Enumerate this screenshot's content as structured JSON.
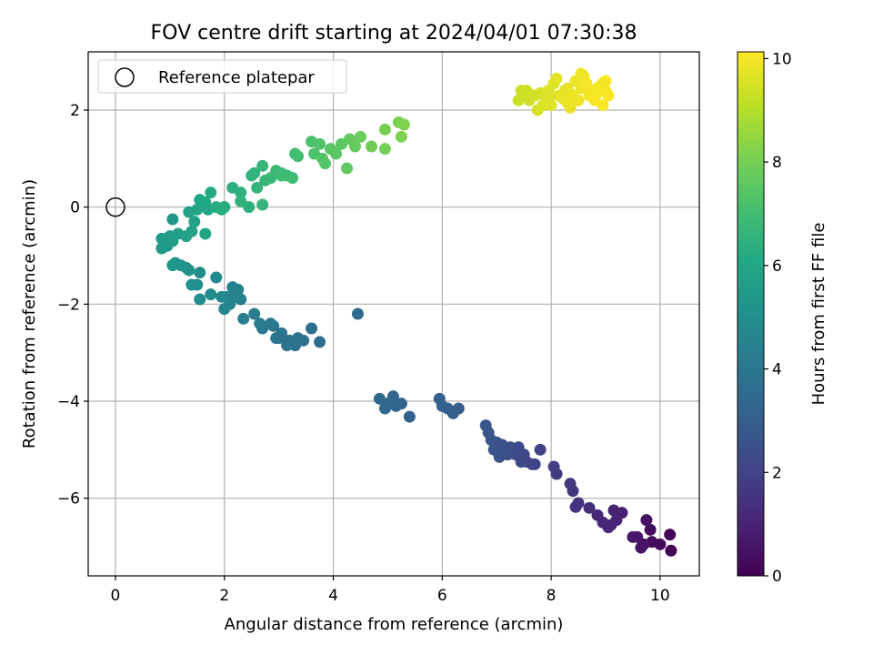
{
  "chart_data": {
    "type": "scatter",
    "title": "FOV centre drift starting at 2024/04/01 07:30:38",
    "xlabel": "Angular distance from reference (arcmin)",
    "ylabel": "Rotation from reference (arcmin)",
    "xlim": [
      -0.5,
      10.72
    ],
    "ylim": [
      -7.6,
      3.2
    ],
    "xticks": [
      0,
      2,
      4,
      6,
      8,
      10
    ],
    "yticks": [
      -6,
      -4,
      -2,
      0,
      2
    ],
    "grid": true,
    "legend": {
      "position": "top-left",
      "entries": [
        "Reference platepar"
      ]
    },
    "reference_point": {
      "x": 0,
      "y": 0
    },
    "colorbar": {
      "label": "Hours from first FF file",
      "colormap": "viridis",
      "range": [
        0,
        10.13
      ],
      "ticks": [
        0,
        2,
        4,
        6,
        8,
        10
      ]
    },
    "series": [
      {
        "points": [
          [
            10.2,
            -7.08
          ],
          [
            10.18,
            -6.75
          ],
          [
            10.0,
            -6.95
          ],
          [
            9.85,
            -6.9
          ],
          [
            9.82,
            -6.65
          ],
          [
            9.75,
            -6.45
          ],
          [
            9.7,
            -6.95
          ],
          [
            9.65,
            -7.02
          ],
          [
            9.58,
            -6.8
          ],
          [
            9.5,
            -6.8
          ],
          [
            9.3,
            -6.3
          ],
          [
            9.2,
            -6.45
          ],
          [
            9.15,
            -6.25
          ],
          [
            9.1,
            -6.55
          ],
          [
            9.05,
            -6.6
          ],
          [
            8.95,
            -6.5
          ],
          [
            8.85,
            -6.35
          ],
          [
            8.7,
            -6.2
          ],
          [
            8.5,
            -6.1
          ],
          [
            8.45,
            -6.18
          ],
          [
            8.4,
            -5.85
          ],
          [
            8.35,
            -5.7
          ],
          [
            8.1,
            -5.5
          ],
          [
            8.05,
            -5.35
          ],
          [
            7.8,
            -5.0
          ],
          [
            7.7,
            -5.3
          ],
          [
            7.65,
            -5.3
          ],
          [
            7.55,
            -5.25
          ],
          [
            7.5,
            -5.1
          ],
          [
            7.45,
            -5.25
          ],
          [
            7.4,
            -4.95
          ],
          [
            7.35,
            -5.1
          ],
          [
            7.3,
            -5.0
          ],
          [
            7.25,
            -4.95
          ],
          [
            7.2,
            -5.1
          ],
          [
            7.15,
            -5.0
          ],
          [
            7.1,
            -4.9
          ],
          [
            7.05,
            -5.15
          ],
          [
            7.0,
            -4.85
          ],
          [
            6.95,
            -5.0
          ],
          [
            6.9,
            -4.8
          ],
          [
            6.85,
            -4.65
          ],
          [
            6.8,
            -4.5
          ],
          [
            6.3,
            -4.15
          ],
          [
            6.2,
            -4.25
          ],
          [
            6.1,
            -4.15
          ],
          [
            6.0,
            -4.1
          ],
          [
            5.95,
            -3.95
          ],
          [
            5.4,
            -4.32
          ],
          [
            5.25,
            -4.05
          ],
          [
            5.15,
            -4.1
          ],
          [
            5.1,
            -3.9
          ],
          [
            5.05,
            -4.02
          ],
          [
            5.0,
            -4.05
          ],
          [
            4.95,
            -4.15
          ],
          [
            4.85,
            -3.95
          ],
          [
            4.45,
            -2.2
          ],
          [
            3.75,
            -2.78
          ],
          [
            3.6,
            -2.5
          ],
          [
            3.45,
            -2.75
          ],
          [
            3.35,
            -2.7
          ],
          [
            3.3,
            -2.85
          ],
          [
            3.2,
            -2.75
          ],
          [
            3.15,
            -2.85
          ],
          [
            3.05,
            -2.6
          ],
          [
            2.95,
            -2.7
          ],
          [
            2.9,
            -2.45
          ],
          [
            2.85,
            -2.4
          ],
          [
            2.7,
            -2.5
          ],
          [
            2.65,
            -2.4
          ],
          [
            2.55,
            -2.2
          ],
          [
            2.35,
            -2.3
          ],
          [
            2.3,
            -1.9
          ],
          [
            2.25,
            -1.7
          ],
          [
            2.2,
            -1.85
          ],
          [
            2.15,
            -1.65
          ],
          [
            2.1,
            -2.0
          ],
          [
            2.05,
            -1.85
          ],
          [
            2.0,
            -2.1
          ],
          [
            1.95,
            -1.85
          ],
          [
            1.85,
            -1.45
          ],
          [
            1.75,
            -1.8
          ],
          [
            1.55,
            -1.9
          ],
          [
            1.55,
            -1.35
          ],
          [
            1.5,
            -1.6
          ],
          [
            1.4,
            -1.6
          ],
          [
            1.35,
            -1.3
          ],
          [
            1.3,
            -1.25
          ],
          [
            1.2,
            -1.2
          ],
          [
            1.1,
            -1.15
          ],
          [
            1.05,
            -1.2
          ],
          [
            0.95,
            -0.8
          ],
          [
            0.9,
            -0.75
          ],
          [
            0.85,
            -0.85
          ],
          [
            1.0,
            -0.6
          ],
          [
            0.85,
            -0.65
          ],
          [
            1.05,
            -0.7
          ],
          [
            1.15,
            -0.55
          ],
          [
            1.3,
            -0.6
          ],
          [
            1.4,
            -0.5
          ],
          [
            1.45,
            -0.3
          ],
          [
            1.35,
            -0.1
          ],
          [
            1.5,
            -0.05
          ],
          [
            1.65,
            -0.55
          ],
          [
            1.7,
            -0.05
          ],
          [
            1.55,
            0.15
          ],
          [
            1.65,
            0.1
          ],
          [
            1.75,
            0.3
          ],
          [
            1.85,
            0.0
          ],
          [
            1.95,
            -0.05
          ],
          [
            2.0,
            0.0
          ],
          [
            2.15,
            0.4
          ],
          [
            2.3,
            0.3
          ],
          [
            2.3,
            0.12
          ],
          [
            2.5,
            0.65
          ],
          [
            2.6,
            0.4
          ],
          [
            2.75,
            0.55
          ],
          [
            2.85,
            0.6
          ],
          [
            2.95,
            0.75
          ],
          [
            3.05,
            0.7
          ],
          [
            3.15,
            0.65
          ],
          [
            3.25,
            0.6
          ],
          [
            3.3,
            1.1
          ],
          [
            3.35,
            1.05
          ],
          [
            3.6,
            1.35
          ],
          [
            3.65,
            1.1
          ],
          [
            3.75,
            1.3
          ],
          [
            3.8,
            1.0
          ],
          [
            3.85,
            0.9
          ],
          [
            3.95,
            1.2
          ],
          [
            4.05,
            1.1
          ],
          [
            4.15,
            1.3
          ],
          [
            4.25,
            0.8
          ],
          [
            4.3,
            1.4
          ],
          [
            4.4,
            1.25
          ],
          [
            4.5,
            1.45
          ],
          [
            4.7,
            1.25
          ],
          [
            4.95,
            1.2
          ],
          [
            4.95,
            1.6
          ],
          [
            5.2,
            1.75
          ],
          [
            5.25,
            1.45
          ],
          [
            5.3,
            1.7
          ],
          [
            2.7,
            0.05
          ],
          [
            1.05,
            -0.25
          ],
          [
            2.45,
            0.0
          ],
          [
            3.05,
            0.65
          ],
          [
            2.55,
            0.7
          ],
          [
            2.7,
            0.85
          ],
          [
            2.0,
            0.0
          ],
          [
            3.0,
            -2.7
          ],
          [
            7.4,
            2.2
          ],
          [
            7.45,
            2.4
          ],
          [
            7.5,
            2.35
          ],
          [
            7.55,
            2.4
          ],
          [
            7.6,
            2.2
          ],
          [
            7.7,
            2.3
          ],
          [
            7.75,
            2.0
          ],
          [
            7.8,
            2.35
          ],
          [
            7.85,
            2.1
          ],
          [
            7.9,
            2.15
          ],
          [
            7.95,
            2.4
          ],
          [
            8.0,
            2.1
          ],
          [
            8.05,
            2.55
          ],
          [
            8.1,
            2.65
          ],
          [
            8.15,
            2.3
          ],
          [
            8.2,
            2.25
          ],
          [
            8.25,
            2.4
          ],
          [
            8.3,
            2.15
          ],
          [
            8.35,
            2.05
          ],
          [
            8.4,
            2.3
          ],
          [
            8.45,
            2.6
          ],
          [
            8.5,
            2.2
          ],
          [
            8.55,
            2.45
          ],
          [
            8.6,
            2.7
          ],
          [
            8.65,
            2.55
          ],
          [
            8.7,
            2.3
          ],
          [
            8.75,
            2.4
          ],
          [
            8.8,
            2.2
          ],
          [
            8.85,
            2.35
          ],
          [
            8.9,
            2.5
          ],
          [
            8.95,
            2.1
          ],
          [
            9.0,
            2.6
          ],
          [
            9.05,
            2.3
          ],
          [
            8.55,
            2.75
          ],
          [
            8.3,
            2.45
          ],
          [
            8.0,
            2.3
          ],
          [
            9.0,
            2.4
          ],
          [
            8.95,
            2.55
          ],
          [
            8.85,
            2.45
          ],
          [
            8.4,
            2.2
          ]
        ],
        "hours": [
          0.0,
          0.1,
          0.2,
          0.3,
          0.35,
          0.45,
          0.5,
          0.55,
          0.6,
          0.65,
          0.9,
          0.95,
          1.0,
          1.05,
          1.1,
          1.15,
          1.25,
          1.35,
          1.45,
          1.5,
          1.55,
          1.6,
          1.75,
          1.8,
          1.95,
          2.0,
          2.05,
          2.1,
          2.15,
          2.2,
          2.2,
          2.25,
          2.3,
          2.35,
          2.4,
          2.45,
          2.5,
          2.55,
          2.55,
          2.6,
          2.65,
          2.7,
          2.75,
          2.95,
          3.0,
          3.05,
          3.1,
          3.12,
          3.2,
          3.25,
          3.3,
          3.32,
          3.35,
          3.4,
          3.42,
          3.45,
          3.55,
          3.65,
          3.7,
          3.75,
          3.8,
          3.82,
          3.85,
          3.9,
          3.95,
          4.0,
          4.05,
          4.1,
          4.15,
          4.2,
          4.25,
          4.3,
          4.35,
          4.4,
          4.45,
          4.5,
          4.55,
          4.6,
          4.65,
          4.7,
          4.8,
          4.85,
          4.9,
          4.95,
          5.0,
          5.05,
          5.1,
          5.15,
          5.2,
          5.25,
          5.3,
          5.35,
          5.4,
          5.45,
          5.5,
          5.55,
          5.6,
          5.65,
          5.7,
          5.75,
          5.8,
          5.85,
          5.9,
          5.95,
          6.0,
          6.05,
          6.1,
          6.15,
          6.2,
          6.25,
          6.3,
          6.4,
          6.45,
          6.5,
          6.6,
          6.65,
          6.7,
          6.75,
          6.8,
          6.85,
          6.9,
          6.95,
          7.0,
          7.05,
          7.2,
          7.25,
          7.3,
          7.35,
          7.4,
          7.45,
          7.5,
          7.55,
          7.6,
          7.65,
          7.7,
          7.8,
          7.9,
          7.95,
          8.05,
          8.1,
          8.15,
          8.2,
          6.6,
          5.4,
          6.45,
          6.9,
          6.55,
          6.7,
          6.3,
          3.9,
          9.3,
          9.3,
          9.35,
          9.4,
          9.4,
          9.45,
          9.5,
          9.5,
          9.55,
          9.6,
          9.6,
          9.65,
          9.65,
          9.7,
          9.7,
          9.75,
          9.75,
          9.8,
          9.8,
          9.85,
          9.85,
          9.9,
          9.9,
          9.95,
          9.95,
          10.0,
          10.0,
          10.05,
          10.05,
          10.1,
          10.1,
          10.1,
          10.1,
          9.9,
          9.8,
          9.6,
          10.05,
          10.0,
          9.95,
          9.85
        ]
      }
    ]
  }
}
